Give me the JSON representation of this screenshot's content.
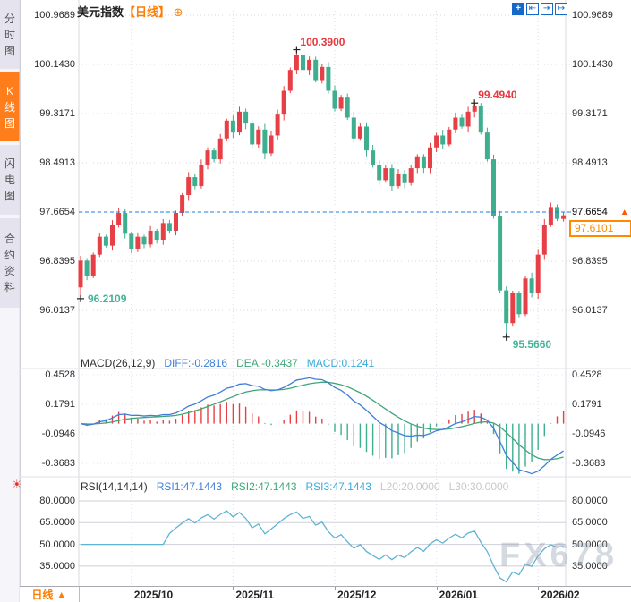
{
  "header": {
    "title": "美元指数",
    "period_tag": "【日线】",
    "add_icon": "⊕"
  },
  "toolbar": {
    "icons": [
      {
        "name": "crosshair-icon",
        "glyph": "+",
        "filled": true
      },
      {
        "name": "scale-left-icon",
        "glyph": "⇤",
        "filled": false
      },
      {
        "name": "scale-right-icon",
        "glyph": "⇥",
        "filled": false
      },
      {
        "name": "goto-latest-icon",
        "glyph": "↦",
        "filled": false
      }
    ]
  },
  "sidebar": {
    "tabs": [
      {
        "label": "分时图",
        "active": false
      },
      {
        "label": "K线图",
        "active": true
      },
      {
        "label": "闪电图",
        "active": false
      },
      {
        "label": "合约资料",
        "active": false
      }
    ]
  },
  "main_chart": {
    "y_axis_labels": [
      "100.9689",
      "100.1430",
      "99.3171",
      "98.4913",
      "97.6654",
      "96.8395",
      "96.0137"
    ],
    "current_price": {
      "line_label": "97.6654",
      "arrow": "▲",
      "box_value": "97.6101"
    },
    "annotations": [
      {
        "text": "100.3900",
        "color": "#e5383f",
        "candle": 34,
        "price": 100.39,
        "kind": "high"
      },
      {
        "text": "99.4940",
        "color": "#e5383f",
        "candle": 62,
        "price": 99.494,
        "kind": "high"
      },
      {
        "text": "96.2109",
        "color": "#45b397",
        "candle": 0,
        "price": 96.2109,
        "kind": "low"
      },
      {
        "text": "95.5660",
        "color": "#45b397",
        "candle": 67,
        "price": 95.566,
        "kind": "low"
      }
    ],
    "watermark": "FX678"
  },
  "macd_panel": {
    "header": [
      {
        "text": "MACD(26,12,9)",
        "color": "#333333"
      },
      {
        "text": "DIFF:-0.2816",
        "color": "#3d7fd9"
      },
      {
        "text": "DEA:-0.3437",
        "color": "#3fa678"
      },
      {
        "text": "MACD:0.1241",
        "color": "#3aa9d8"
      }
    ],
    "y_axis_labels": [
      "0.4528",
      "0.1791",
      "-0.0946",
      "-0.3683"
    ]
  },
  "rsi_panel": {
    "header": [
      {
        "text": "RSI(14,14,14)",
        "color": "#333333"
      },
      {
        "text": "RSI1:47.1443",
        "color": "#3d7fd9"
      },
      {
        "text": "RSI2:47.1443",
        "color": "#3fa678"
      },
      {
        "text": "RSI3:47.1443",
        "color": "#3aa9d8"
      },
      {
        "text": "L20:20.0000",
        "color": "#c8c8cc"
      },
      {
        "text": "L30:30.0000",
        "color": "#c8c8cc"
      }
    ],
    "y_axis_labels": [
      "80.0000",
      "65.0000",
      "50.0000",
      "35.0000"
    ]
  },
  "time_axis": {
    "period_label": "日线 ▲",
    "ticks": [
      {
        "label": "2025/10",
        "index": 8
      },
      {
        "label": "2025/11",
        "index": 24
      },
      {
        "label": "2025/12",
        "index": 40
      },
      {
        "label": "2026/01",
        "index": 56
      },
      {
        "label": "2026/02",
        "index": 72
      }
    ]
  },
  "chart_data": {
    "type": "candlestick",
    "symbol": "美元指数",
    "interval": "日线",
    "title": "美元指数 日线 K线图",
    "y_range": [
      95.4,
      101.1
    ],
    "y_ticks": [
      100.9689,
      100.143,
      99.3171,
      98.4913,
      97.6654,
      96.8395,
      96.0137
    ],
    "first_open": 96.4,
    "closes": [
      96.85,
      96.6,
      96.95,
      97.25,
      97.1,
      97.45,
      97.65,
      97.3,
      97.05,
      97.25,
      97.12,
      97.35,
      97.2,
      97.48,
      97.35,
      97.65,
      97.95,
      98.25,
      98.1,
      98.45,
      98.7,
      98.55,
      98.9,
      99.2,
      99.0,
      99.35,
      99.15,
      98.8,
      99.05,
      98.65,
      98.95,
      99.3,
      99.7,
      100.05,
      100.3,
      100.05,
      100.22,
      99.88,
      100.1,
      99.7,
      99.4,
      99.6,
      99.25,
      98.9,
      99.1,
      98.7,
      98.45,
      98.2,
      98.4,
      98.1,
      98.3,
      98.15,
      98.4,
      98.6,
      98.4,
      98.75,
      98.95,
      98.8,
      99.05,
      99.25,
      99.1,
      99.35,
      99.45,
      99.0,
      98.55,
      97.6,
      96.35,
      95.8,
      96.3,
      95.95,
      96.55,
      96.3,
      96.95,
      97.45,
      97.75,
      97.55,
      97.61
    ],
    "extremes": [
      {
        "index": 0,
        "side": "low",
        "value": 96.2109
      },
      {
        "index": 34,
        "side": "high",
        "value": 100.39
      },
      {
        "index": 62,
        "side": "high",
        "value": 99.494
      },
      {
        "index": 67,
        "side": "low",
        "value": 95.566
      }
    ],
    "last_close_line": 97.6654,
    "latest_price": 97.6101,
    "up_color": "#e64046",
    "down_color": "#3fae8f",
    "indicators": {
      "macd": {
        "params": [
          26,
          12,
          9
        ],
        "diff": -0.2816,
        "dea": -0.3437,
        "macd": 0.1241,
        "y_ticks": [
          0.4528,
          0.1791,
          -0.0946,
          -0.3683
        ],
        "diff_color": "#3e7fd8",
        "dea_color": "#3fa678"
      },
      "rsi": {
        "params": [
          14,
          14,
          14
        ],
        "rsi1": 47.1443,
        "rsi2": 47.1443,
        "rsi3": 47.1443,
        "l20": 20.0,
        "l30": 30.0,
        "y_ticks": [
          80,
          65,
          50,
          35
        ],
        "line_color": "#5fb3d4"
      }
    },
    "x_ticks": [
      "2025/10",
      "2025/11",
      "2025/12",
      "2026/01",
      "2026/02"
    ],
    "legend_position": "none",
    "grid": true
  }
}
